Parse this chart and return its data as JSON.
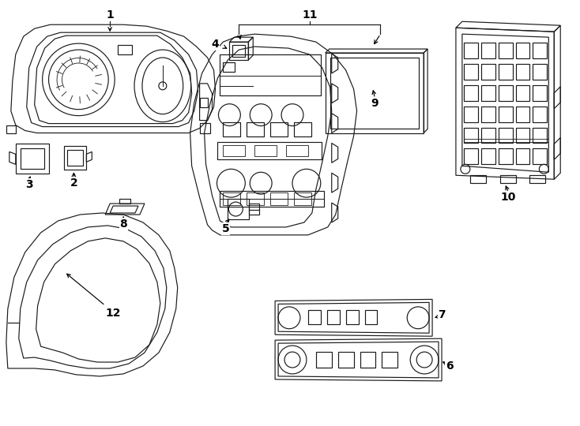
{
  "bg_color": "#ffffff",
  "line_color": "#1a1a1a",
  "fig_width": 7.34,
  "fig_height": 5.4,
  "dpi": 100,
  "xlim": [
    0,
    7.34
  ],
  "ylim": [
    0,
    5.4
  ]
}
